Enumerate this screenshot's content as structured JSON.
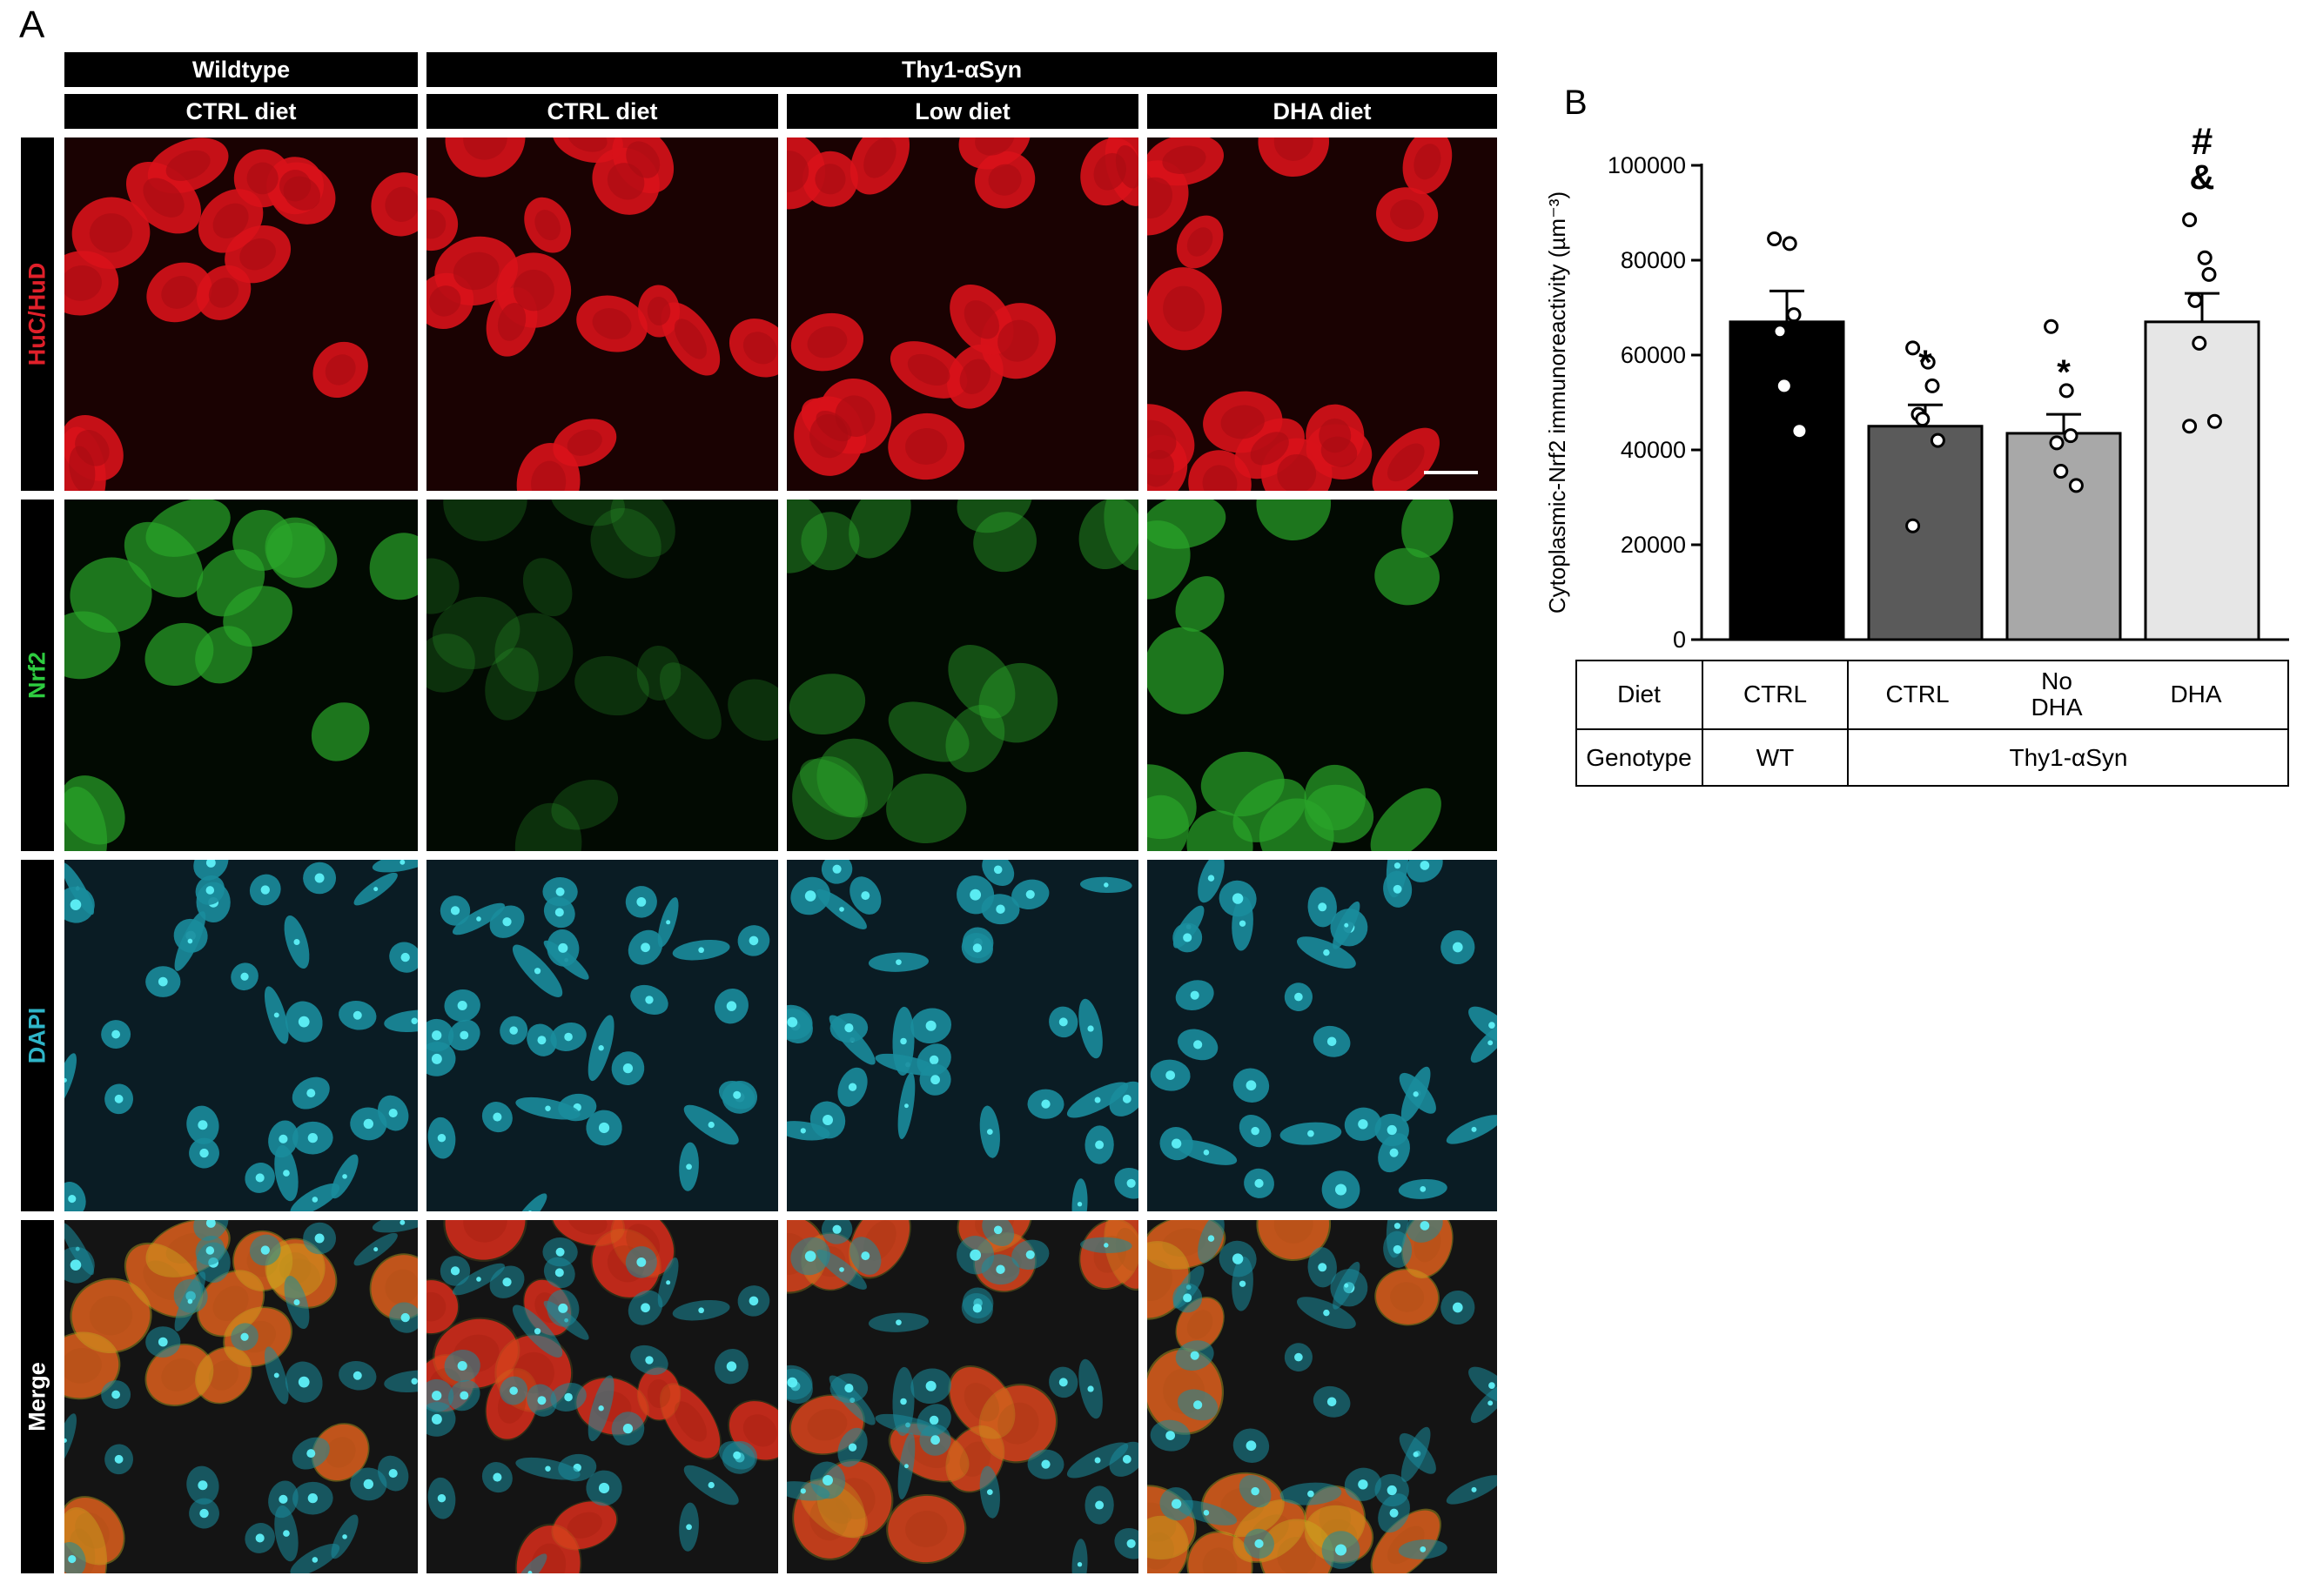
{
  "figure": {
    "panel_a_letter": "A",
    "panel_b_letter": "B",
    "group_headers": {
      "wildtype": "Wildtype",
      "thy1": "Thy1-αSyn"
    },
    "column_headers": [
      "CTRL diet",
      "CTRL diet",
      "Low diet",
      "DHA diet"
    ],
    "row_labels": [
      {
        "text": "HuC/HuD",
        "color": "#e0202a"
      },
      {
        "text": "Nrf2",
        "color": "#2ecc40"
      },
      {
        "text": "DAPI",
        "color": "#2fb5c8"
      },
      {
        "text": "Merge",
        "color": "#ffffff"
      }
    ],
    "channel_colors": {
      "huc": "#e8141c",
      "nrf2": "#32c832",
      "dapi": "#28d2dc"
    }
  },
  "chart_data": {
    "type": "bar",
    "ylabel": "Cytoplasmic-Nrf2 immunoreactivity (µm⁻³)",
    "ylim": [
      0,
      100000
    ],
    "yticks": [
      "0",
      "20000",
      "40000",
      "60000",
      "80000",
      "100000"
    ],
    "ytick_values": [
      0,
      20000,
      40000,
      60000,
      80000,
      100000
    ],
    "categories": [
      "WT CTRL",
      "Thy1-αSyn CTRL",
      "Thy1-αSyn No DHA",
      "Thy1-αSyn DHA"
    ],
    "values": [
      67000,
      45000,
      43500,
      67000
    ],
    "sem": [
      6500,
      4500,
      4000,
      6000
    ],
    "bar_colors": [
      "#000000",
      "#5a5a5a",
      "#a8a8a8",
      "#e6e6e6"
    ],
    "points": [
      [
        84500,
        83500,
        68500,
        65000,
        53500,
        44000
      ],
      [
        61500,
        58500,
        53500,
        47500,
        46500,
        42000,
        24000
      ],
      [
        66000,
        52500,
        43000,
        41500,
        35500,
        32500
      ],
      [
        88500,
        80500,
        77000,
        71500,
        62500,
        46000,
        45000
      ]
    ],
    "annotations": [
      "",
      "*",
      "*",
      "#\n&"
    ],
    "table": {
      "row1_label": "Diet",
      "row2_label": "Genotype",
      "diet": [
        "CTRL",
        "CTRL",
        "No\nDHA",
        "DHA"
      ],
      "genotype": [
        "WT",
        "Thy1-αSyn"
      ]
    }
  }
}
